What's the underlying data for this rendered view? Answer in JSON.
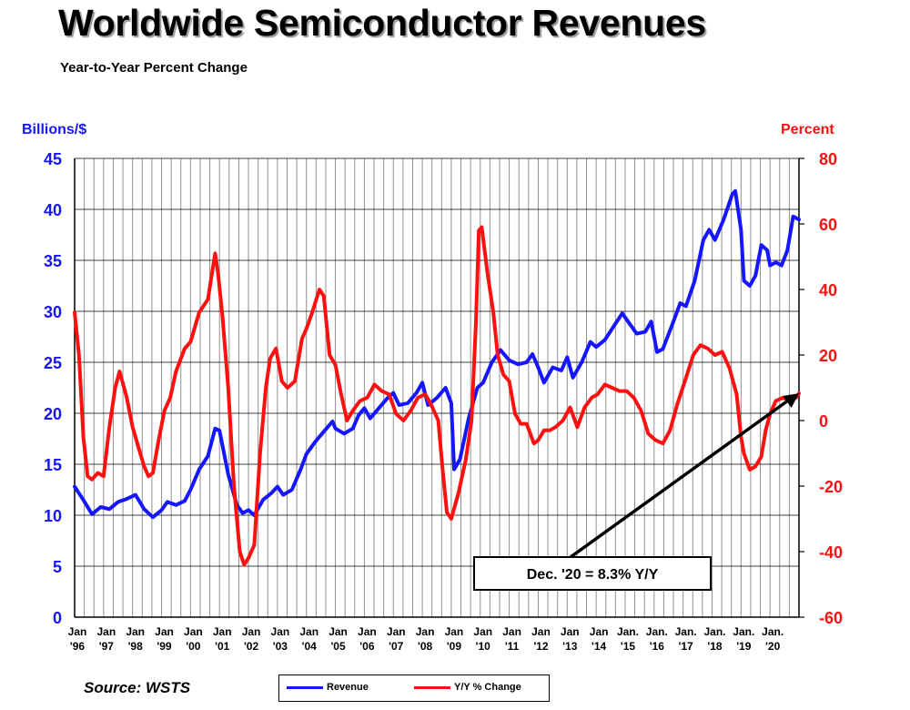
{
  "title": "Worldwide Semiconductor Revenues",
  "subtitle": "Year-to-Year Percent Change",
  "source": "Source: WSTS",
  "colors": {
    "revenue": "#1515ff",
    "yoy": "#ff1010",
    "grid": "#909090",
    "callout": "#000000"
  },
  "chart_data": {
    "type": "line",
    "title": "Worldwide Semiconductor Revenues",
    "ylabel_left": "Billions/$",
    "ylabel_right": "Percent",
    "ylim_left": [
      0,
      45
    ],
    "ylim_right": [
      -60,
      80
    ],
    "yticks_left": [
      0,
      5,
      10,
      15,
      20,
      25,
      30,
      35,
      40,
      45
    ],
    "yticks_right": [
      -60,
      -40,
      -20,
      0,
      20,
      40,
      60,
      80
    ],
    "x_range": [
      1996.0,
      2021.0
    ],
    "xticks": [
      {
        "line1": "Jan",
        "line2": "'96",
        "x": 1996
      },
      {
        "line1": "Jan",
        "line2": "'97",
        "x": 1997
      },
      {
        "line1": "Jan",
        "line2": "'98",
        "x": 1998
      },
      {
        "line1": "Jan",
        "line2": "'99",
        "x": 1999
      },
      {
        "line1": "Jan",
        "line2": "'00",
        "x": 2000
      },
      {
        "line1": "Jan",
        "line2": "'01",
        "x": 2001
      },
      {
        "line1": "Jan",
        "line2": "'02",
        "x": 2002
      },
      {
        "line1": "Jan",
        "line2": "'03",
        "x": 2003
      },
      {
        "line1": "Jan",
        "line2": "'04",
        "x": 2004
      },
      {
        "line1": "Jan",
        "line2": "'05",
        "x": 2005
      },
      {
        "line1": "Jan",
        "line2": "'06",
        "x": 2006
      },
      {
        "line1": "Jan",
        "line2": "'07",
        "x": 2007
      },
      {
        "line1": "Jan",
        "line2": "'08",
        "x": 2008
      },
      {
        "line1": "Jan",
        "line2": "'09",
        "x": 2009
      },
      {
        "line1": "Jan",
        "line2": "'10",
        "x": 2010
      },
      {
        "line1": "Jan",
        "line2": "'11",
        "x": 2011
      },
      {
        "line1": "Jan",
        "line2": "'12",
        "x": 2012
      },
      {
        "line1": "Jan",
        "line2": "'13",
        "x": 2013
      },
      {
        "line1": "Jan",
        "line2": "'14",
        "x": 2014
      },
      {
        "line1": "Jan.",
        "line2": "'15",
        "x": 2015
      },
      {
        "line1": "Jan.",
        "line2": "'16",
        "x": 2016
      },
      {
        "line1": "Jan.",
        "line2": "'17",
        "x": 2017
      },
      {
        "line1": "Jan.",
        "line2": "'18",
        "x": 2018
      },
      {
        "line1": "Jan.",
        "line2": "'19",
        "x": 2019
      },
      {
        "line1": "Jan.",
        "line2": "'20",
        "x": 2020
      }
    ],
    "series": [
      {
        "name": "Revenue",
        "axis": "left",
        "color": "#1515ff",
        "points": [
          [
            1996.0,
            12.8
          ],
          [
            1996.3,
            11.5
          ],
          [
            1996.6,
            10.1
          ],
          [
            1996.9,
            10.8
          ],
          [
            1997.2,
            10.6
          ],
          [
            1997.5,
            11.3
          ],
          [
            1997.8,
            11.6
          ],
          [
            1998.1,
            12.0
          ],
          [
            1998.4,
            10.6
          ],
          [
            1998.7,
            9.8
          ],
          [
            1999.0,
            10.5
          ],
          [
            1999.2,
            11.3
          ],
          [
            1999.5,
            11.0
          ],
          [
            1999.8,
            11.4
          ],
          [
            2000.0,
            12.5
          ],
          [
            2000.3,
            14.5
          ],
          [
            2000.6,
            15.8
          ],
          [
            2000.85,
            18.5
          ],
          [
            2001.0,
            18.3
          ],
          [
            2001.3,
            14.0
          ],
          [
            2001.6,
            11.0
          ],
          [
            2001.8,
            10.2
          ],
          [
            2002.0,
            10.5
          ],
          [
            2002.2,
            10.0
          ],
          [
            2002.5,
            11.5
          ],
          [
            2002.8,
            12.2
          ],
          [
            2003.0,
            12.8
          ],
          [
            2003.2,
            12.0
          ],
          [
            2003.5,
            12.5
          ],
          [
            2003.8,
            14.5
          ],
          [
            2004.0,
            16.0
          ],
          [
            2004.3,
            17.2
          ],
          [
            2004.6,
            18.2
          ],
          [
            2004.9,
            19.2
          ],
          [
            2005.0,
            18.5
          ],
          [
            2005.3,
            18.0
          ],
          [
            2005.6,
            18.5
          ],
          [
            2005.8,
            19.8
          ],
          [
            2006.0,
            20.5
          ],
          [
            2006.2,
            19.5
          ],
          [
            2006.5,
            20.5
          ],
          [
            2006.8,
            21.5
          ],
          [
            2007.0,
            22.0
          ],
          [
            2007.2,
            20.8
          ],
          [
            2007.5,
            21.0
          ],
          [
            2007.8,
            22.0
          ],
          [
            2008.0,
            23.0
          ],
          [
            2008.2,
            20.8
          ],
          [
            2008.5,
            21.5
          ],
          [
            2008.8,
            22.5
          ],
          [
            2009.0,
            21.0
          ],
          [
            2009.1,
            14.5
          ],
          [
            2009.3,
            15.5
          ],
          [
            2009.6,
            19.5
          ],
          [
            2009.9,
            22.5
          ],
          [
            2010.1,
            23.0
          ],
          [
            2010.4,
            25.0
          ],
          [
            2010.7,
            26.2
          ],
          [
            2011.0,
            25.2
          ],
          [
            2011.3,
            24.8
          ],
          [
            2011.6,
            25.0
          ],
          [
            2011.8,
            25.8
          ],
          [
            2012.0,
            24.5
          ],
          [
            2012.2,
            23.0
          ],
          [
            2012.5,
            24.5
          ],
          [
            2012.8,
            24.2
          ],
          [
            2013.0,
            25.5
          ],
          [
            2013.2,
            23.5
          ],
          [
            2013.5,
            25.0
          ],
          [
            2013.8,
            27.0
          ],
          [
            2014.0,
            26.5
          ],
          [
            2014.3,
            27.2
          ],
          [
            2014.6,
            28.5
          ],
          [
            2014.9,
            29.8
          ],
          [
            2015.1,
            29.0
          ],
          [
            2015.4,
            27.8
          ],
          [
            2015.7,
            28.0
          ],
          [
            2015.9,
            29.0
          ],
          [
            2016.1,
            26.0
          ],
          [
            2016.3,
            26.3
          ],
          [
            2016.6,
            28.5
          ],
          [
            2016.9,
            30.8
          ],
          [
            2017.1,
            30.5
          ],
          [
            2017.4,
            33.0
          ],
          [
            2017.7,
            37.0
          ],
          [
            2017.9,
            38.0
          ],
          [
            2018.1,
            37.0
          ],
          [
            2018.4,
            39.0
          ],
          [
            2018.7,
            41.5
          ],
          [
            2018.8,
            41.8
          ],
          [
            2019.0,
            38.0
          ],
          [
            2019.1,
            33.0
          ],
          [
            2019.3,
            32.5
          ],
          [
            2019.5,
            33.5
          ],
          [
            2019.7,
            36.5
          ],
          [
            2019.9,
            36.0
          ],
          [
            2020.0,
            34.5
          ],
          [
            2020.2,
            34.8
          ],
          [
            2020.4,
            34.5
          ],
          [
            2020.6,
            36.0
          ],
          [
            2020.8,
            39.3
          ],
          [
            2021.0,
            39.0
          ]
        ]
      },
      {
        "name": "Y/Y % Change",
        "axis": "right",
        "color": "#ff1010",
        "points": [
          [
            1996.0,
            33
          ],
          [
            1996.15,
            20
          ],
          [
            1996.3,
            -5
          ],
          [
            1996.45,
            -17
          ],
          [
            1996.6,
            -18
          ],
          [
            1996.8,
            -16
          ],
          [
            1997.0,
            -17
          ],
          [
            1997.2,
            -2
          ],
          [
            1997.4,
            10
          ],
          [
            1997.55,
            15
          ],
          [
            1997.8,
            7
          ],
          [
            1998.0,
            -2
          ],
          [
            1998.2,
            -8
          ],
          [
            1998.4,
            -14
          ],
          [
            1998.55,
            -17
          ],
          [
            1998.7,
            -16
          ],
          [
            1998.9,
            -6
          ],
          [
            1999.1,
            3
          ],
          [
            1999.3,
            7
          ],
          [
            1999.5,
            15
          ],
          [
            1999.8,
            22
          ],
          [
            2000.0,
            24
          ],
          [
            2000.3,
            33
          ],
          [
            2000.6,
            37
          ],
          [
            2000.85,
            51
          ],
          [
            2000.95,
            45
          ],
          [
            2001.1,
            32
          ],
          [
            2001.3,
            10
          ],
          [
            2001.5,
            -20
          ],
          [
            2001.7,
            -40
          ],
          [
            2001.85,
            -44
          ],
          [
            2002.0,
            -42
          ],
          [
            2002.2,
            -38
          ],
          [
            2002.4,
            -10
          ],
          [
            2002.6,
            10
          ],
          [
            2002.75,
            19
          ],
          [
            2002.95,
            22
          ],
          [
            2003.15,
            12
          ],
          [
            2003.35,
            10
          ],
          [
            2003.6,
            12
          ],
          [
            2003.85,
            25
          ],
          [
            2004.0,
            28
          ],
          [
            2004.2,
            33
          ],
          [
            2004.45,
            40
          ],
          [
            2004.6,
            38
          ],
          [
            2004.8,
            20
          ],
          [
            2005.0,
            17
          ],
          [
            2005.2,
            8
          ],
          [
            2005.4,
            0
          ],
          [
            2005.6,
            3
          ],
          [
            2005.85,
            6
          ],
          [
            2006.1,
            7
          ],
          [
            2006.35,
            11
          ],
          [
            2006.6,
            9
          ],
          [
            2006.85,
            8
          ],
          [
            2007.1,
            2
          ],
          [
            2007.35,
            0
          ],
          [
            2007.6,
            3
          ],
          [
            2007.85,
            7
          ],
          [
            2008.1,
            8
          ],
          [
            2008.3,
            5
          ],
          [
            2008.55,
            0
          ],
          [
            2008.7,
            -15
          ],
          [
            2008.85,
            -28
          ],
          [
            2009.0,
            -30
          ],
          [
            2009.25,
            -22
          ],
          [
            2009.5,
            -12
          ],
          [
            2009.7,
            0
          ],
          [
            2009.85,
            30
          ],
          [
            2009.95,
            58
          ],
          [
            2010.05,
            59
          ],
          [
            2010.25,
            45
          ],
          [
            2010.45,
            33
          ],
          [
            2010.6,
            20
          ],
          [
            2010.8,
            14
          ],
          [
            2011.0,
            12
          ],
          [
            2011.2,
            2
          ],
          [
            2011.4,
            -1
          ],
          [
            2011.6,
            -1
          ],
          [
            2011.85,
            -7
          ],
          [
            2012.0,
            -6
          ],
          [
            2012.2,
            -3
          ],
          [
            2012.4,
            -3
          ],
          [
            2012.6,
            -2
          ],
          [
            2012.85,
            0
          ],
          [
            2013.1,
            4
          ],
          [
            2013.35,
            -2
          ],
          [
            2013.6,
            4
          ],
          [
            2013.85,
            7
          ],
          [
            2014.05,
            8
          ],
          [
            2014.3,
            11
          ],
          [
            2014.55,
            10
          ],
          [
            2014.8,
            9
          ],
          [
            2015.05,
            9
          ],
          [
            2015.3,
            7
          ],
          [
            2015.55,
            3
          ],
          [
            2015.8,
            -4
          ],
          [
            2016.05,
            -6
          ],
          [
            2016.3,
            -7
          ],
          [
            2016.55,
            -3
          ],
          [
            2016.8,
            5
          ],
          [
            2017.1,
            13
          ],
          [
            2017.35,
            20
          ],
          [
            2017.6,
            23
          ],
          [
            2017.85,
            22
          ],
          [
            2018.1,
            20
          ],
          [
            2018.35,
            21
          ],
          [
            2018.6,
            16
          ],
          [
            2018.85,
            8
          ],
          [
            2019.0,
            -5
          ],
          [
            2019.1,
            -10
          ],
          [
            2019.3,
            -15
          ],
          [
            2019.5,
            -14
          ],
          [
            2019.7,
            -11
          ],
          [
            2019.85,
            -3
          ],
          [
            2020.0,
            2
          ],
          [
            2020.2,
            6
          ],
          [
            2020.45,
            7
          ],
          [
            2020.7,
            6
          ],
          [
            2020.9,
            7
          ],
          [
            2021.0,
            8.3
          ]
        ]
      }
    ],
    "annotation": {
      "text": "Dec. '20 = 8.3% Y/Y",
      "target_x": 2021.0,
      "target_y_right": 8.3
    }
  },
  "legend": [
    {
      "label": "Revenue",
      "color": "#1515ff"
    },
    {
      "label": "Y/Y % Change",
      "color": "#ff1010"
    }
  ]
}
